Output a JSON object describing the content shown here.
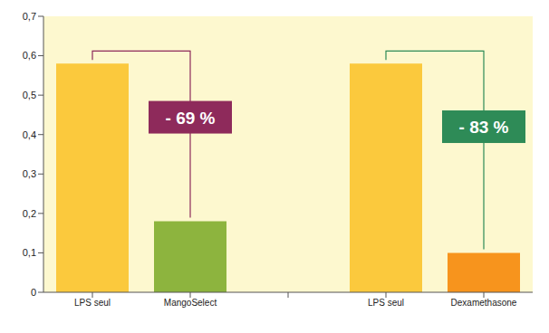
{
  "chart_data": {
    "type": "bar",
    "categories": [
      "LPS seul",
      "MangoSelect",
      null,
      "LPS seul",
      "Dexamethasone"
    ],
    "values": [
      0.58,
      0.18,
      null,
      0.58,
      0.1
    ],
    "colors": [
      "#fbc93d",
      "#8db43e",
      null,
      "#fbc93d",
      "#f7941d"
    ],
    "ylim": [
      0,
      0.7
    ],
    "yticks": [
      0,
      {
        "value": 0.1,
        "label": "0,1"
      },
      {
        "value": 0.2,
        "label": "0,2"
      },
      {
        "value": 0.3,
        "label": "0,3"
      },
      {
        "value": 0.4,
        "label": "0,4"
      },
      {
        "value": 0.5,
        "label": "0,5"
      },
      {
        "value": 0.6,
        "label": "0,6"
      },
      {
        "value": 0.7,
        "label": "0,7"
      }
    ],
    "grid": false,
    "annotations": [
      {
        "text": "- 69 %",
        "color": "#8e2a5b"
      },
      {
        "text": "- 83 %",
        "color": "#2e8b57"
      }
    ]
  }
}
